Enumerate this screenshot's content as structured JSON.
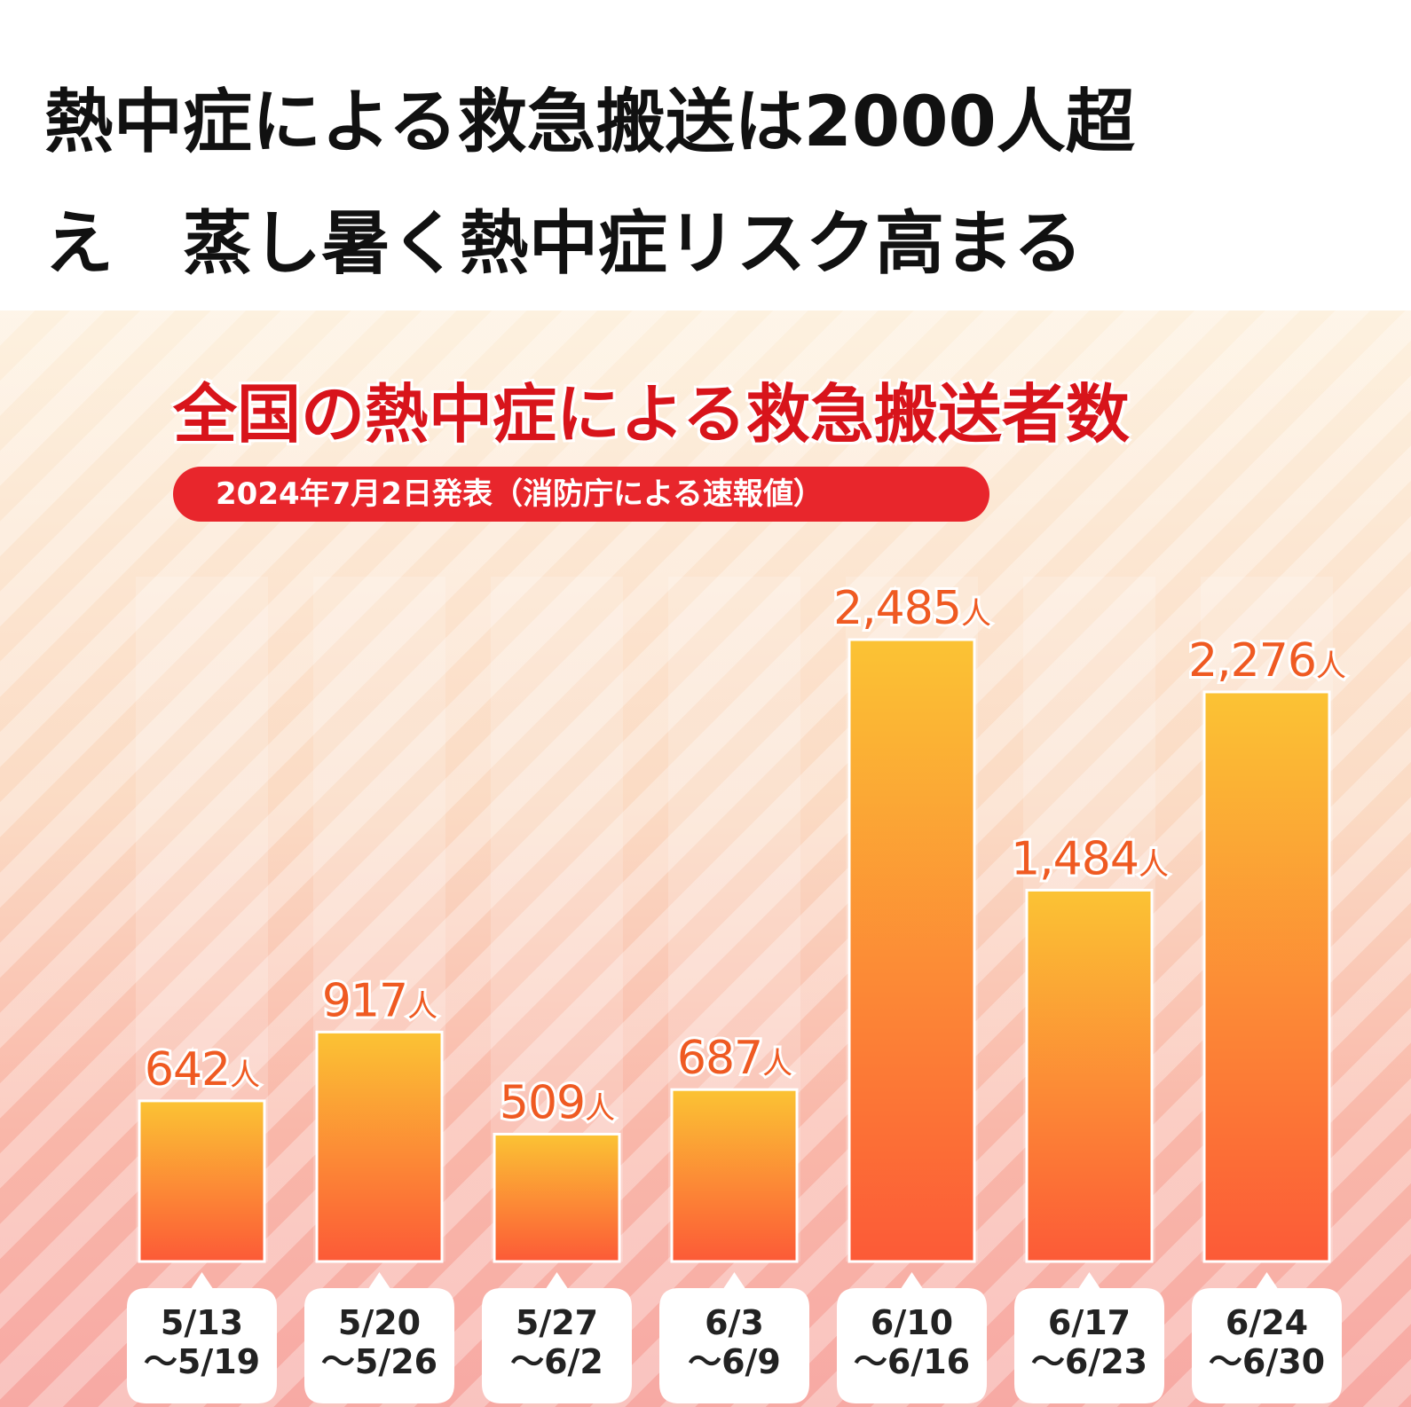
{
  "headline": {
    "line1": "熱中症による救急搬送は2000人超",
    "line2": "え　蒸し暑く熱中症リスク高まる"
  },
  "chart_data": {
    "type": "bar",
    "title": "全国の熱中症による救急搬送者数",
    "subtitle": "2024年7月2日発表（消防庁による速報値）",
    "categories": [
      [
        "5/13",
        "〜5/19"
      ],
      [
        "5/20",
        "〜5/26"
      ],
      [
        "5/27",
        "〜6/2"
      ],
      [
        "6/3",
        "〜6/9"
      ],
      [
        "6/10",
        "〜6/16"
      ],
      [
        "6/17",
        "〜6/23"
      ],
      [
        "6/24",
        "〜6/30"
      ]
    ],
    "values": [
      642,
      917,
      509,
      687,
      2485,
      1484,
      2276
    ],
    "value_labels": [
      "642",
      "917",
      "509",
      "687",
      "2,485",
      "1,484",
      "2,276"
    ],
    "unit": "人",
    "ylim": [
      0,
      2485
    ],
    "colors": {
      "bar_top": "#fbc334",
      "bar_bottom": "#fc5a37",
      "label": "#ef5a22",
      "title": "#d8141b",
      "pill": "#e8262c"
    }
  }
}
